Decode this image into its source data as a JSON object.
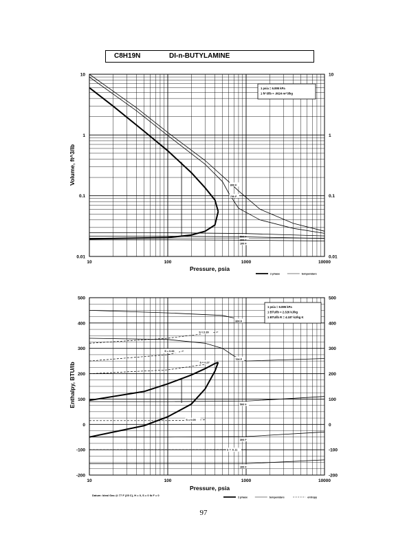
{
  "header": {
    "formula": "C8H19N",
    "name": "DI-n-BUTYLAMINE"
  },
  "page_number": "97",
  "footnote": "Datum: Ideal Gas @ 77 F (25 C), H = 0, S = 0 lb F = 0",
  "chart_data": [
    {
      "type": "line",
      "xlabel": "Pressure,  psia",
      "ylabel": "Volume, ft^3/lb",
      "xscale": "log",
      "yscale": "log",
      "xlim": [
        10,
        10000
      ],
      "ylim": [
        0.01,
        10
      ],
      "x_ticks": [
        "10",
        "100",
        "1000",
        "10000"
      ],
      "y_ticks_left": [
        "10",
        "1",
        "0.1",
        "0.01"
      ],
      "y_ticks_right": [
        "10",
        "1",
        "0.1",
        "0.01"
      ],
      "grid": true,
      "conversion_box": [
        "1 psia = 6.895 kPa",
        "1 ft^3/lb = .0624 m^3/kg"
      ],
      "legend": [
        "2 phase",
        "temperature"
      ],
      "saturation_vapor": [
        [
          10,
          6.0
        ],
        [
          20,
          3.0
        ],
        [
          50,
          1.15
        ],
        [
          100,
          0.55
        ],
        [
          200,
          0.24
        ],
        [
          300,
          0.135
        ],
        [
          400,
          0.085
        ],
        [
          440,
          0.055
        ]
      ],
      "saturation_liquid": [
        [
          10,
          0.0195
        ],
        [
          100,
          0.0205
        ],
        [
          200,
          0.0225
        ],
        [
          300,
          0.026
        ],
        [
          400,
          0.033
        ],
        [
          440,
          0.055
        ]
      ],
      "tie_line": [
        [
          150,
          0.0215
        ],
        [
          150,
          0.36
        ]
      ],
      "isotherms": [
        {
          "label": "800 F",
          "points": [
            [
              10,
              10
            ],
            [
              40,
              2.8
            ],
            [
              100,
              1.1
            ],
            [
              300,
              0.38
            ],
            [
              600,
              0.17
            ],
            [
              800,
              0.12
            ],
            [
              1500,
              0.06
            ],
            [
              4000,
              0.035
            ],
            [
              10000,
              0.026
            ]
          ]
        },
        {
          "label": "700 F",
          "points": [
            [
              10,
              9.0
            ],
            [
              40,
              2.5
            ],
            [
              100,
              0.98
            ],
            [
              300,
              0.33
            ],
            [
              500,
              0.17
            ],
            [
              600,
              0.11
            ],
            [
              800,
              0.062
            ],
            [
              1500,
              0.04
            ],
            [
              4000,
              0.029
            ],
            [
              10000,
              0.024
            ]
          ]
        },
        {
          "label": "500 F",
          "points": [
            [
              10,
              0.0245
            ],
            [
              100,
              0.0245
            ],
            [
              1000,
              0.0238
            ],
            [
              10000,
              0.0218
            ]
          ]
        },
        {
          "label": "300 F",
          "points": [
            [
              10,
              0.0215
            ],
            [
              100,
              0.0215
            ],
            [
              1000,
              0.021
            ],
            [
              10000,
              0.0198
            ]
          ]
        },
        {
          "label": "100 F",
          "points": [
            [
              10,
              0.0188
            ],
            [
              100,
              0.0188
            ],
            [
              1000,
              0.0185
            ],
            [
              10000,
              0.018
            ]
          ]
        }
      ]
    },
    {
      "type": "line",
      "xlabel": "Pressure,  psia",
      "ylabel": "Enthalpy, BTU/lb",
      "xscale": "log",
      "xlim": [
        10,
        10000
      ],
      "ylim": [
        -200,
        500
      ],
      "x_ticks": [
        "10",
        "100",
        "1000",
        "10000"
      ],
      "y_ticks_left": [
        "500",
        "400",
        "300",
        "200",
        "100",
        "0",
        "-100",
        "-200"
      ],
      "y_ticks_right": [
        "500",
        "400",
        "300",
        "200",
        "100",
        "0",
        "-100",
        "-200"
      ],
      "grid": true,
      "conversion_box": [
        "1 psia = 6.895 kPa",
        "1 BTU/lb = 2.326 kJ/kg",
        "1 BTU/lb R = 4.187 kJ/kg K"
      ],
      "legend": [
        "2 phase",
        "temperature",
        "entropy"
      ],
      "saturation_vapor": [
        [
          10,
          95
        ],
        [
          50,
          130
        ],
        [
          100,
          160
        ],
        [
          200,
          195
        ],
        [
          300,
          220
        ],
        [
          400,
          240
        ],
        [
          440,
          245
        ]
      ],
      "saturation_liquid": [
        [
          10,
          -50
        ],
        [
          50,
          -5
        ],
        [
          100,
          30
        ],
        [
          200,
          80
        ],
        [
          300,
          140
        ],
        [
          400,
          210
        ],
        [
          440,
          245
        ]
      ],
      "tie_line": [
        [
          150,
          85
        ],
        [
          150,
          183
        ]
      ],
      "isotherms": [
        {
          "label": "800 F",
          "points": [
            [
              10,
              450
            ],
            [
              100,
              440
            ],
            [
              500,
              430
            ],
            [
              700,
              420
            ]
          ]
        },
        {
          "label": "700 F",
          "points": [
            [
              10,
              340
            ],
            [
              100,
              335
            ],
            [
              300,
              320
            ],
            [
              500,
              300
            ],
            [
              700,
              270
            ],
            [
              1000,
              250
            ],
            [
              10000,
              260
            ]
          ]
        },
        {
          "label": "500 F",
          "points": [
            [
              10,
              90
            ],
            [
              100,
              90
            ],
            [
              1000,
              92
            ],
            [
              10000,
              110
            ]
          ]
        },
        {
          "label": "300 F",
          "points": [
            [
              10,
              -50
            ],
            [
              100,
              -50
            ],
            [
              1000,
              -48
            ],
            [
              10000,
              -30
            ]
          ]
        },
        {
          "label": "100 F",
          "points": [
            [
              10,
              -155
            ],
            [
              100,
              -155
            ],
            [
              1000,
              -155
            ],
            [
              10000,
              -140
            ]
          ]
        }
      ],
      "entropy_lines": [
        {
          "label": "S = 0.39",
          "points": [
            [
              10,
              320
            ],
            [
              100,
              340
            ],
            [
              440,
              365
            ]
          ]
        },
        {
          "label": "S = 0.33",
          "points": [
            [
              10,
              250
            ],
            [
              100,
              275
            ],
            [
              160,
              290
            ]
          ]
        },
        {
          "label": "S = 0.27",
          "points": [
            [
              10,
              200
            ],
            [
              100,
              215
            ],
            [
              450,
              245
            ]
          ]
        },
        {
          "label": "S = 0.05",
          "points": [
            [
              10,
              15
            ],
            [
              100,
              15
            ],
            [
              300,
              18
            ]
          ]
        },
        {
          "label": "S = -0.11",
          "points": [
            [
              10,
              -100
            ],
            [
              300,
              -100
            ],
            [
              1000,
              -100
            ]
          ]
        }
      ]
    }
  ]
}
